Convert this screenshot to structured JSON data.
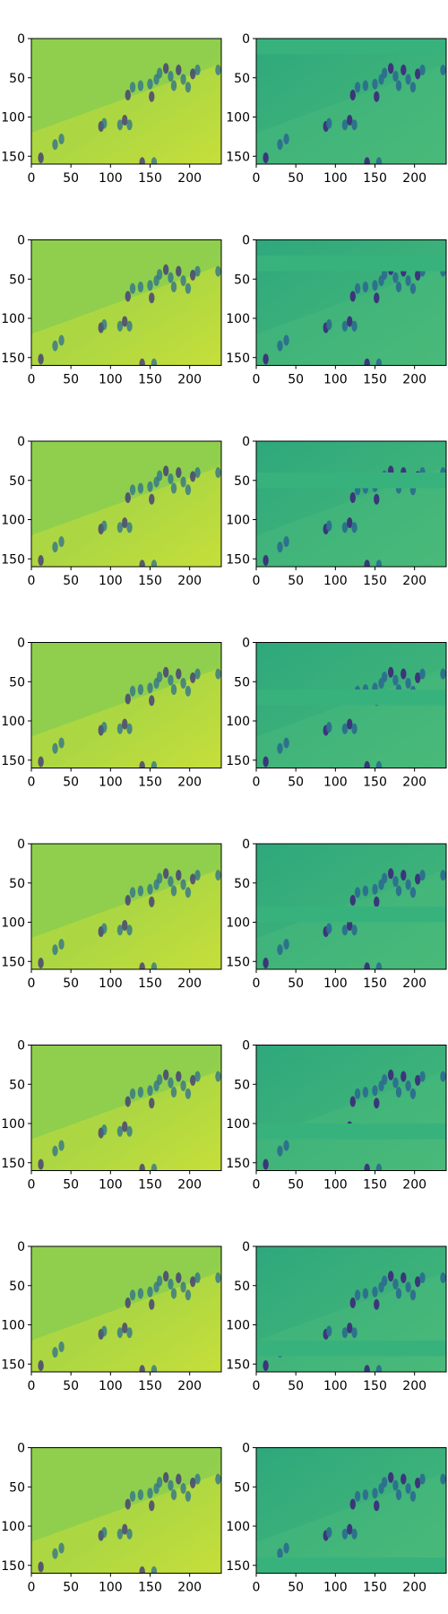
{
  "figure": {
    "rows": 8,
    "cols": 2,
    "palette": {
      "background": "#ffffff",
      "left_base": "#8fcf4d",
      "left_bright": "#c6df3a",
      "right_base": "#2ea87c",
      "right_flat": "#38b27d",
      "figure_dark": "#3b2f7a",
      "figure_mid": "#2c6f8e",
      "axis": "#000000"
    }
  },
  "chart_data": {
    "type": "heatmap",
    "image_width_units": 240,
    "image_height_units": 160,
    "x_ticks": [
      0,
      50,
      100,
      150,
      200
    ],
    "y_ticks": [
      0,
      50,
      100,
      150
    ],
    "xlim": [
      0,
      240
    ],
    "ylim": [
      160,
      0
    ],
    "colormap": "viridis",
    "panels": [
      {
        "row": 1,
        "col": 1,
        "kind": "reconstruction",
        "masked_band_y": null
      },
      {
        "row": 1,
        "col": 2,
        "kind": "masked_input",
        "masked_band_y": [
          0,
          20
        ]
      },
      {
        "row": 2,
        "col": 1,
        "kind": "reconstruction",
        "masked_band_y": null
      },
      {
        "row": 2,
        "col": 2,
        "kind": "masked_input",
        "masked_band_y": [
          20,
          40
        ]
      },
      {
        "row": 3,
        "col": 1,
        "kind": "reconstruction",
        "masked_band_y": null
      },
      {
        "row": 3,
        "col": 2,
        "kind": "masked_input",
        "masked_band_y": [
          40,
          60
        ]
      },
      {
        "row": 4,
        "col": 1,
        "kind": "reconstruction",
        "masked_band_y": null
      },
      {
        "row": 4,
        "col": 2,
        "kind": "masked_input",
        "masked_band_y": [
          60,
          80
        ]
      },
      {
        "row": 5,
        "col": 1,
        "kind": "reconstruction",
        "masked_band_y": null
      },
      {
        "row": 5,
        "col": 2,
        "kind": "masked_input",
        "masked_band_y": [
          80,
          100
        ]
      },
      {
        "row": 6,
        "col": 1,
        "kind": "reconstruction",
        "masked_band_y": null
      },
      {
        "row": 6,
        "col": 2,
        "kind": "masked_input",
        "masked_band_y": [
          100,
          120
        ]
      },
      {
        "row": 7,
        "col": 1,
        "kind": "reconstruction",
        "masked_band_y": null
      },
      {
        "row": 7,
        "col": 2,
        "kind": "masked_input",
        "masked_band_y": [
          120,
          140
        ]
      },
      {
        "row": 8,
        "col": 1,
        "kind": "reconstruction",
        "masked_band_y": null
      },
      {
        "row": 8,
        "col": 2,
        "kind": "masked_input",
        "masked_band_y": [
          140,
          160
        ]
      }
    ],
    "people_positions": [
      [
        12,
        152
      ],
      [
        30,
        135
      ],
      [
        38,
        128
      ],
      [
        88,
        112
      ],
      [
        92,
        108
      ],
      [
        112,
        110
      ],
      [
        118,
        104
      ],
      [
        124,
        110
      ],
      [
        128,
        62
      ],
      [
        122,
        72
      ],
      [
        138,
        60
      ],
      [
        150,
        58
      ],
      [
        152,
        74
      ],
      [
        158,
        52
      ],
      [
        162,
        44
      ],
      [
        170,
        38
      ],
      [
        176,
        48
      ],
      [
        180,
        60
      ],
      [
        186,
        40
      ],
      [
        192,
        52
      ],
      [
        198,
        62
      ],
      [
        204,
        45
      ],
      [
        210,
        40
      ],
      [
        236,
        40
      ],
      [
        140,
        158
      ],
      [
        155,
        158
      ]
    ]
  }
}
